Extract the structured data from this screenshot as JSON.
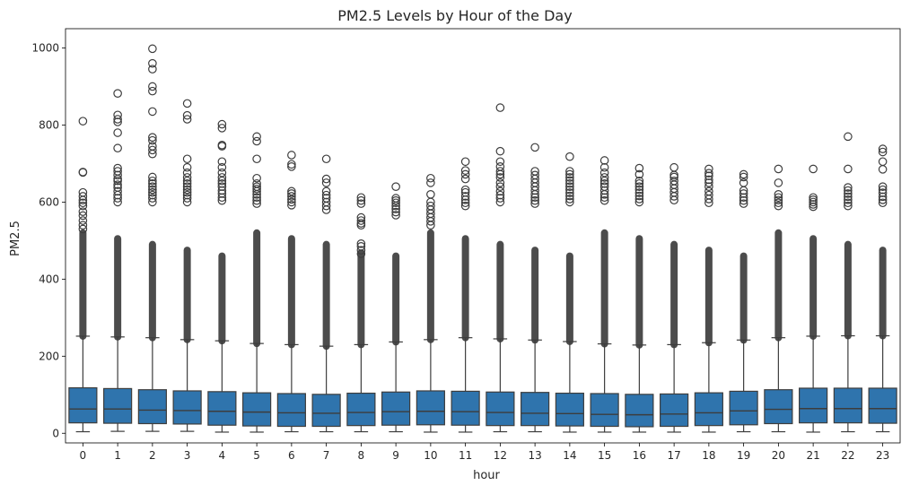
{
  "chart_data": {
    "type": "box",
    "title": "PM2.5 Levels by Hour of the Day",
    "xlabel": "hour",
    "ylabel": "PM2.5",
    "categories": [
      "0",
      "1",
      "2",
      "3",
      "4",
      "5",
      "6",
      "7",
      "8",
      "9",
      "10",
      "11",
      "12",
      "13",
      "14",
      "15",
      "16",
      "17",
      "18",
      "19",
      "20",
      "21",
      "22",
      "23"
    ],
    "ylim": [
      -25,
      1050
    ],
    "yticks": [
      0,
      200,
      400,
      600,
      800,
      1000
    ],
    "box_color": "#2f74ad",
    "line_color": "#3d3d3d",
    "grid": false,
    "legend": "none",
    "boxes": [
      {
        "min": 4,
        "q1": 27,
        "median": 63,
        "q3": 118,
        "whisker_high": 252,
        "outliers": [
          810,
          678,
          677,
          625,
          615,
          605,
          598,
          590,
          575,
          565,
          552,
          540,
          530
        ]
      },
      {
        "min": 5,
        "q1": 26,
        "median": 63,
        "q3": 116,
        "whisker_high": 250,
        "outliers": [
          882,
          826,
          815,
          808,
          780,
          740,
          688,
          680,
          670,
          660,
          655,
          645,
          638,
          628,
          618,
          610,
          600
        ]
      },
      {
        "min": 5,
        "q1": 25,
        "median": 60,
        "q3": 113,
        "whisker_high": 248,
        "outliers": [
          998,
          960,
          945,
          900,
          888,
          835,
          768,
          760,
          745,
          735,
          725,
          665,
          655,
          648,
          640,
          632,
          625,
          618,
          610,
          600
        ]
      },
      {
        "min": 5,
        "q1": 24,
        "median": 59,
        "q3": 110,
        "whisker_high": 243,
        "outliers": [
          856,
          825,
          815,
          712,
          690,
          676,
          664,
          655,
          648,
          640,
          632,
          625,
          618,
          610,
          600
        ]
      },
      {
        "min": 3,
        "q1": 21,
        "median": 57,
        "q3": 108,
        "whisker_high": 240,
        "outliers": [
          802,
          792,
          748,
          745,
          705,
          690,
          676,
          664,
          655,
          648,
          640,
          630,
          622,
          612,
          604
        ]
      },
      {
        "min": 3,
        "q1": 19,
        "median": 55,
        "q3": 105,
        "whisker_high": 233,
        "outliers": [
          770,
          758,
          712,
          662,
          648,
          640,
          634,
          628,
          620,
          612,
          604,
          596
        ]
      },
      {
        "min": 4,
        "q1": 18,
        "median": 53,
        "q3": 103,
        "whisker_high": 230,
        "outliers": [
          722,
          698,
          692,
          628,
          622,
          615,
          607,
          600,
          592
        ]
      },
      {
        "min": 4,
        "q1": 18,
        "median": 52,
        "q3": 101,
        "whisker_high": 226,
        "outliers": [
          712,
          660,
          650,
          628,
          618,
          610,
          600,
          590,
          580
        ]
      },
      {
        "min": 4,
        "q1": 20,
        "median": 54,
        "q3": 104,
        "whisker_high": 230,
        "outliers": [
          612,
          604,
          596,
          560,
          552,
          545,
          540,
          492,
          485,
          475,
          466
        ]
      },
      {
        "min": 4,
        "q1": 21,
        "median": 56,
        "q3": 107,
        "whisker_high": 237,
        "outliers": [
          640,
          610,
          604,
          598,
          590,
          582,
          574,
          566
        ]
      },
      {
        "min": 3,
        "q1": 22,
        "median": 57,
        "q3": 110,
        "whisker_high": 243,
        "outliers": [
          662,
          650,
          620,
          600,
          590,
          580,
          570,
          560,
          550,
          540
        ]
      },
      {
        "min": 3,
        "q1": 21,
        "median": 56,
        "q3": 109,
        "whisker_high": 248,
        "outliers": [
          705,
          682,
          672,
          660,
          632,
          625,
          615,
          606,
          598,
          590
        ]
      },
      {
        "min": 4,
        "q1": 20,
        "median": 54,
        "q3": 107,
        "whisker_high": 245,
        "outliers": [
          845,
          732,
          705,
          692,
          680,
          672,
          664,
          650,
          640,
          628,
          618,
          610,
          600
        ]
      },
      {
        "min": 4,
        "q1": 20,
        "median": 52,
        "q3": 106,
        "whisker_high": 242,
        "outliers": [
          742,
          680,
          670,
          660,
          650,
          640,
          630,
          620,
          612,
          604,
          596
        ]
      },
      {
        "min": 3,
        "q1": 19,
        "median": 51,
        "q3": 104,
        "whisker_high": 238,
        "outliers": [
          718,
          680,
          672,
          664,
          656,
          648,
          640,
          632,
          624,
          616,
          608,
          600
        ]
      },
      {
        "min": 3,
        "q1": 18,
        "median": 49,
        "q3": 103,
        "whisker_high": 232,
        "outliers": [
          708,
          690,
          676,
          664,
          655,
          648,
          640,
          630,
          620,
          612,
          604
        ]
      },
      {
        "min": 3,
        "q1": 17,
        "median": 48,
        "q3": 101,
        "whisker_high": 229,
        "outliers": [
          688,
          672,
          655,
          648,
          640,
          632,
          624,
          616,
          608,
          600
        ]
      },
      {
        "min": 3,
        "q1": 18,
        "median": 50,
        "q3": 102,
        "whisker_high": 230,
        "outliers": [
          690,
          670,
          665,
          655,
          645,
          635,
          625,
          615,
          605
        ]
      },
      {
        "min": 3,
        "q1": 20,
        "median": 53,
        "q3": 105,
        "whisker_high": 235,
        "outliers": [
          686,
          675,
          668,
          658,
          650,
          640,
          628,
          618,
          608,
          598
        ]
      },
      {
        "min": 4,
        "q1": 22,
        "median": 58,
        "q3": 109,
        "whisker_high": 242,
        "outliers": [
          672,
          665,
          650,
          630,
          622,
          612,
          604,
          596
        ]
      },
      {
        "min": 4,
        "q1": 25,
        "median": 62,
        "q3": 113,
        "whisker_high": 248,
        "outliers": [
          686,
          650,
          620,
          612,
          605,
          598,
          590
        ]
      },
      {
        "min": 3,
        "q1": 27,
        "median": 64,
        "q3": 117,
        "whisker_high": 252,
        "outliers": [
          686,
          612,
          606,
          600,
          594,
          588
        ]
      },
      {
        "min": 4,
        "q1": 27,
        "median": 64,
        "q3": 117,
        "whisker_high": 253,
        "outliers": [
          770,
          686,
          638,
          630,
          622,
          614,
          606,
          598,
          590
        ]
      },
      {
        "min": 4,
        "q1": 26,
        "median": 64,
        "q3": 117,
        "whisker_high": 253,
        "outliers": [
          738,
          730,
          705,
          685,
          640,
          632,
          624,
          614,
          606,
          598
        ]
      }
    ]
  }
}
